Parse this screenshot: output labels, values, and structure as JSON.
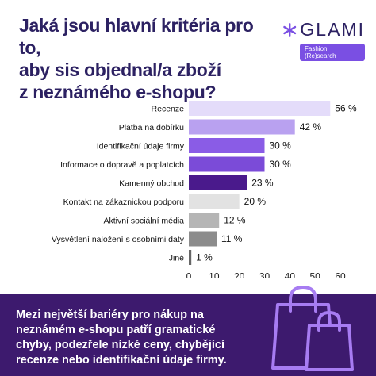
{
  "title_lines": [
    "Jaká jsou hlavní kritéria pro to,",
    "aby sis objednal/a zboží",
    "z neznámého e-shopu?"
  ],
  "logo": {
    "name": "GLAMI",
    "tagline": "Fashion (Re)search",
    "icon": "asterisk-star-icon",
    "color": "#7a4fe3"
  },
  "chart_data": {
    "type": "bar",
    "orientation": "horizontal",
    "categories": [
      "Recenze",
      "Platba na dobírku",
      "Identifikační údaje firmy",
      "Informace o dopravě a poplatcích",
      "Kamenný obchod",
      "Kontakt na zákaznickou podporu",
      "Aktivní sociální média",
      "Vysvětlení naložení s osobními daty",
      "Jiné"
    ],
    "values": [
      56,
      42,
      30,
      30,
      23,
      20,
      12,
      11,
      1
    ],
    "value_labels": [
      "56 %",
      "42 %",
      "30 %",
      "30 %",
      "23 %",
      "20 %",
      "12 %",
      "11 %",
      "1 %"
    ],
    "colors": [
      "#e4dcfa",
      "#b9a1f0",
      "#8a5ce6",
      "#7b4bd8",
      "#4a1a8c",
      "#e2e2e2",
      "#b5b5b5",
      "#8c8c8c",
      "#666666"
    ],
    "xlim": [
      0,
      60
    ],
    "xticks": [
      "0",
      "10",
      "20",
      "30",
      "40",
      "50",
      "60"
    ],
    "grid": false,
    "legend": false
  },
  "footer": {
    "text": "Mezi největší bariéry pro nákup na neznámém e-shopu patří gramatické chyby, podezřele nízké ceny, chybějící recenze nebo identifikační údaje firmy.",
    "background": "#3d1a6e",
    "icon": "shopping-bags-icon"
  }
}
